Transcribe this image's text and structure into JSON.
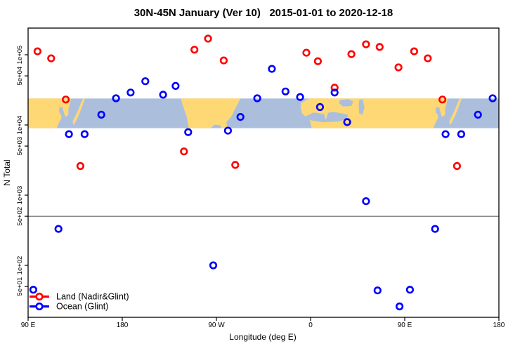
{
  "chart_data": {
    "type": "scatter",
    "title": "30N-45N January (Ver 10)   2015-01-01 to 2020-12-18",
    "xlabel": "Longitude (deg E)",
    "ylabel": "N Total",
    "x_axis": {
      "note": "longitude axis unwrapped, spans 450 degrees: 90E -> 180 -> 90W -> 0 -> 90E -> 180; points with lon 90E-180E are plotted twice",
      "range_deg": [
        90,
        540
      ],
      "ticks": [
        {
          "deg": 90,
          "label": "90 E"
        },
        {
          "deg": 180,
          "label": "180"
        },
        {
          "deg": 270,
          "label": "90 W"
        },
        {
          "deg": 360,
          "label": "0"
        },
        {
          "deg": 450,
          "label": "90 E"
        },
        {
          "deg": 540,
          "label": "180"
        }
      ]
    },
    "y_axis": {
      "scale": "log",
      "range": [
        20,
        300000
      ],
      "ticks": [
        {
          "value": 100000,
          "label": "1e+05"
        },
        {
          "value": 50000,
          "label": "5e+04"
        },
        {
          "value": 10000,
          "label": "1e+04"
        },
        {
          "value": 5000,
          "label": "5e+03"
        },
        {
          "value": 1000,
          "label": "1e+03"
        },
        {
          "value": 500,
          "label": "5e+02"
        },
        {
          "value": 100,
          "label": "1e+02"
        },
        {
          "value": 50,
          "label": "5e+01"
        }
      ]
    },
    "reference_line_value": 500,
    "map_band": {
      "note": "world-map strip (30N-45N latitude band) drawn across plot between these y values",
      "value_top": 23800,
      "value_bottom": 9000,
      "land_color": "#FFD876",
      "ocean_color": "#ABBFDD"
    },
    "grid": false,
    "legend": {
      "position": "bottom-left"
    },
    "series": [
      {
        "name": "Land (Nadir&Glint)",
        "color": "#FF0000",
        "marker": "open-circle",
        "points": [
          [
            99,
            112000
          ],
          [
            112,
            89000
          ],
          [
            126,
            23000
          ],
          [
            140,
            2600
          ],
          [
            239,
            4200
          ],
          [
            249,
            118000
          ],
          [
            262,
            170000
          ],
          [
            277,
            83000
          ],
          [
            288,
            2700
          ],
          [
            356,
            107000
          ],
          [
            367,
            81000
          ],
          [
            383,
            34000
          ],
          [
            399,
            102000
          ],
          [
            413,
            141000
          ],
          [
            426,
            129000
          ],
          [
            444,
            66000
          ],
          [
            459,
            112000
          ],
          [
            472,
            89000
          ],
          [
            486,
            23000
          ],
          [
            500,
            2600
          ]
        ]
      },
      {
        "name": "Ocean (Glint)",
        "color": "#0000FF",
        "marker": "open-circle",
        "points": [
          [
            95,
            45
          ],
          [
            119,
            330
          ],
          [
            129,
            7400
          ],
          [
            144,
            7400
          ],
          [
            160,
            14000
          ],
          [
            174,
            24000
          ],
          [
            188,
            29000
          ],
          [
            202,
            42000
          ],
          [
            219,
            27000
          ],
          [
            231,
            36000
          ],
          [
            243,
            7900
          ],
          [
            267,
            100
          ],
          [
            281,
            8300
          ],
          [
            293,
            13000
          ],
          [
            309,
            24000
          ],
          [
            323,
            63000
          ],
          [
            336,
            30000
          ],
          [
            350,
            25000
          ],
          [
            369,
            18000
          ],
          [
            383,
            29000
          ],
          [
            395,
            11000
          ],
          [
            413,
            820
          ],
          [
            424,
            44
          ],
          [
            445,
            26
          ],
          [
            455,
            45
          ],
          [
            479,
            330
          ],
          [
            489,
            7400
          ],
          [
            504,
            7400
          ],
          [
            520,
            14000
          ],
          [
            534,
            24000
          ]
        ]
      }
    ]
  }
}
